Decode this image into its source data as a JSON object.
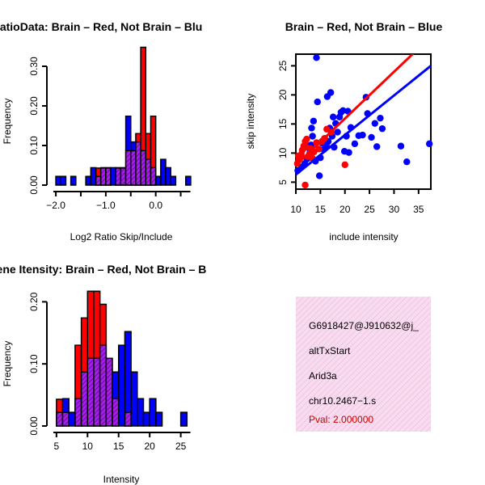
{
  "colors": {
    "red": "#ff0000",
    "blue": "#0000ff",
    "purple": "#a020f0",
    "overlap_hatch": "#6a006a",
    "info_bg": "#f7dcef",
    "info_hatch": "#eeb4dc",
    "pval": "#cc0000"
  },
  "chart_data": [
    {
      "type": "histogram",
      "title": "RatioData: Brain – Red, Not Brain – Blu",
      "xlabel": "Log2 Ratio Skip/Include",
      "ylabel": "Frequency",
      "xlim": [
        -2.05,
        0.75
      ],
      "ylim": [
        0,
        0.35
      ],
      "bin_width": 0.1,
      "xticks": [
        -2.0,
        -1.0,
        0.0
      ],
      "xtick_labels": [
        "−2.0",
        "−1.0",
        "0.0"
      ],
      "yticks": [
        0.0,
        0.1,
        0.2,
        0.3
      ],
      "ytick_labels": [
        "0.00",
        "0.10",
        "0.20",
        "0.30"
      ],
      "series": [
        {
          "name": "Brain",
          "color": "red",
          "bins": [
            [
              -1.2,
              0.043
            ],
            [
              -1.1,
              0.043
            ],
            [
              -1.0,
              0.043
            ],
            [
              -0.8,
              0.043
            ],
            [
              -0.7,
              0.043
            ],
            [
              -0.6,
              0.087
            ],
            [
              -0.5,
              0.087
            ],
            [
              -0.4,
              0.13
            ],
            [
              -0.3,
              0.348
            ],
            [
              -0.2,
              0.13
            ],
            [
              -0.1,
              0.174
            ]
          ]
        },
        {
          "name": "Not Brain",
          "color": "blue",
          "bins": [
            [
              -2.0,
              0.022
            ],
            [
              -1.9,
              0.022
            ],
            [
              -1.7,
              0.022
            ],
            [
              -1.4,
              0.022
            ],
            [
              -1.3,
              0.044
            ],
            [
              -1.2,
              0.022
            ],
            [
              -1.1,
              0.044
            ],
            [
              -1.0,
              0.044
            ],
            [
              -0.9,
              0.044
            ],
            [
              -0.8,
              0.044
            ],
            [
              -0.7,
              0.044
            ],
            [
              -0.6,
              0.174
            ],
            [
              -0.5,
              0.109
            ],
            [
              -0.4,
              0.109
            ],
            [
              -0.3,
              0.087
            ],
            [
              -0.2,
              0.065
            ],
            [
              -0.1,
              0.044
            ],
            [
              0.0,
              0.022
            ],
            [
              0.1,
              0.065
            ],
            [
              0.2,
              0.044
            ],
            [
              0.3,
              0.022
            ],
            [
              0.6,
              0.022
            ]
          ]
        }
      ]
    },
    {
      "type": "scatter",
      "title": "Brain – Red, Not Brain – Blue",
      "xlabel": "include intensity",
      "ylabel": "skip intensity",
      "xlim": [
        10,
        37.5
      ],
      "ylim": [
        3.8,
        27
      ],
      "xticks": [
        10,
        15,
        20,
        25,
        30,
        35
      ],
      "yticks": [
        5,
        10,
        15,
        20,
        25
      ],
      "series": [
        {
          "name": "Brain",
          "color": "red",
          "points": [
            [
              10.3,
              8.2
            ],
            [
              10.6,
              8.8
            ],
            [
              10.9,
              9.2
            ],
            [
              11.1,
              9.8
            ],
            [
              11.3,
              10.5
            ],
            [
              11.6,
              11.2
            ],
            [
              11.9,
              12.0
            ],
            [
              12.2,
              12.4
            ],
            [
              12.5,
              9.4
            ],
            [
              12.8,
              9.9
            ],
            [
              13.0,
              10.8
            ],
            [
              13.4,
              9.1
            ],
            [
              13.7,
              10.2
            ],
            [
              14.2,
              11.8
            ],
            [
              14.7,
              10.7
            ],
            [
              15.3,
              12.0
            ],
            [
              15.8,
              12.5
            ],
            [
              16.3,
              14.1
            ],
            [
              17.2,
              13.6
            ],
            [
              20.0,
              8.0
            ],
            [
              11.9,
              4.5
            ],
            [
              10.5,
              9.5
            ],
            [
              12.1,
              11.0
            ]
          ],
          "fit": [
            [
              10,
              7.9
            ],
            [
              37.5,
              30.0
            ]
          ]
        },
        {
          "name": "Not Brain",
          "color": "blue",
          "points": [
            [
              10.4,
              7.0
            ],
            [
              11.2,
              7.6
            ],
            [
              11.8,
              8.2
            ],
            [
              12.3,
              9.0
            ],
            [
              12.6,
              9.5
            ],
            [
              12.9,
              10.3
            ],
            [
              13.1,
              11.4
            ],
            [
              13.4,
              12.9
            ],
            [
              13.6,
              15.5
            ],
            [
              14.0,
              8.6
            ],
            [
              14.4,
              18.8
            ],
            [
              14.8,
              6.1
            ],
            [
              15.0,
              9.2
            ],
            [
              15.4,
              11.7
            ],
            [
              15.7,
              10.6
            ],
            [
              15.9,
              12.5
            ],
            [
              16.2,
              11.3
            ],
            [
              16.4,
              19.7
            ],
            [
              16.6,
              12.0
            ],
            [
              16.9,
              14.3
            ],
            [
              17.1,
              20.4
            ],
            [
              17.4,
              12.9
            ],
            [
              17.6,
              16.2
            ],
            [
              17.8,
              11.0
            ],
            [
              18.1,
              15.1
            ],
            [
              18.5,
              13.6
            ],
            [
              18.9,
              16.2
            ],
            [
              19.2,
              17.0
            ],
            [
              19.6,
              17.3
            ],
            [
              19.9,
              10.3
            ],
            [
              20.3,
              12.9
            ],
            [
              20.6,
              17.2
            ],
            [
              20.8,
              10.1
            ],
            [
              21.2,
              14.4
            ],
            [
              22.0,
              11.6
            ],
            [
              22.8,
              13.0
            ],
            [
              23.6,
              13.1
            ],
            [
              24.3,
              19.6
            ],
            [
              24.6,
              16.8
            ],
            [
              25.4,
              12.7
            ],
            [
              26.1,
              15.1
            ],
            [
              26.5,
              11.1
            ],
            [
              27.2,
              16.0
            ],
            [
              27.6,
              14.2
            ],
            [
              31.4,
              11.2
            ],
            [
              32.6,
              8.5
            ],
            [
              37.2,
              11.6
            ],
            [
              14.2,
              26.4
            ],
            [
              12.0,
              11.5
            ],
            [
              13.2,
              14.3
            ]
          ],
          "fit": [
            [
              10,
              6.3
            ],
            [
              37.5,
              25.0
            ]
          ]
        }
      ]
    },
    {
      "type": "histogram",
      "title": "Gene Itensity: Brain – Red, Not Brain – B",
      "xlabel": "Intensity",
      "ylabel": "Frequency",
      "xlim": [
        4.5,
        27
      ],
      "ylim": [
        0,
        0.22
      ],
      "bin_width": 1,
      "xticks": [
        5,
        10,
        15,
        20,
        25
      ],
      "yticks": [
        0.0,
        0.1,
        0.2
      ],
      "ytick_labels": [
        "0.00",
        "0.10",
        "0.20"
      ],
      "series": [
        {
          "name": "Brain",
          "color": "red",
          "bins": [
            [
              5,
              0.043
            ],
            [
              6,
              0.022
            ],
            [
              8,
              0.13
            ],
            [
              9,
              0.174
            ],
            [
              10,
              0.217
            ],
            [
              11,
              0.217
            ],
            [
              12,
              0.196
            ],
            [
              13,
              0.109
            ],
            [
              14,
              0.044
            ],
            [
              16,
              0.022
            ]
          ]
        },
        {
          "name": "Not Brain",
          "color": "blue",
          "bins": [
            [
              5,
              0.022
            ],
            [
              6,
              0.044
            ],
            [
              7,
              0.022
            ],
            [
              8,
              0.044
            ],
            [
              9,
              0.087
            ],
            [
              10,
              0.109
            ],
            [
              11,
              0.109
            ],
            [
              12,
              0.13
            ],
            [
              13,
              0.109
            ],
            [
              14,
              0.087
            ],
            [
              15,
              0.13
            ],
            [
              16,
              0.152
            ],
            [
              17,
              0.087
            ],
            [
              18,
              0.044
            ],
            [
              19,
              0.022
            ],
            [
              20,
              0.044
            ],
            [
              21,
              0.022
            ],
            [
              25,
              0.022
            ]
          ]
        }
      ]
    }
  ],
  "info_panel": {
    "line1": "G6918427@J910632@j_",
    "line2": "altTxStart",
    "line3": "Arid3a",
    "line4": "chr10.2467−1.s",
    "line5": "Pval: 2.000000"
  }
}
